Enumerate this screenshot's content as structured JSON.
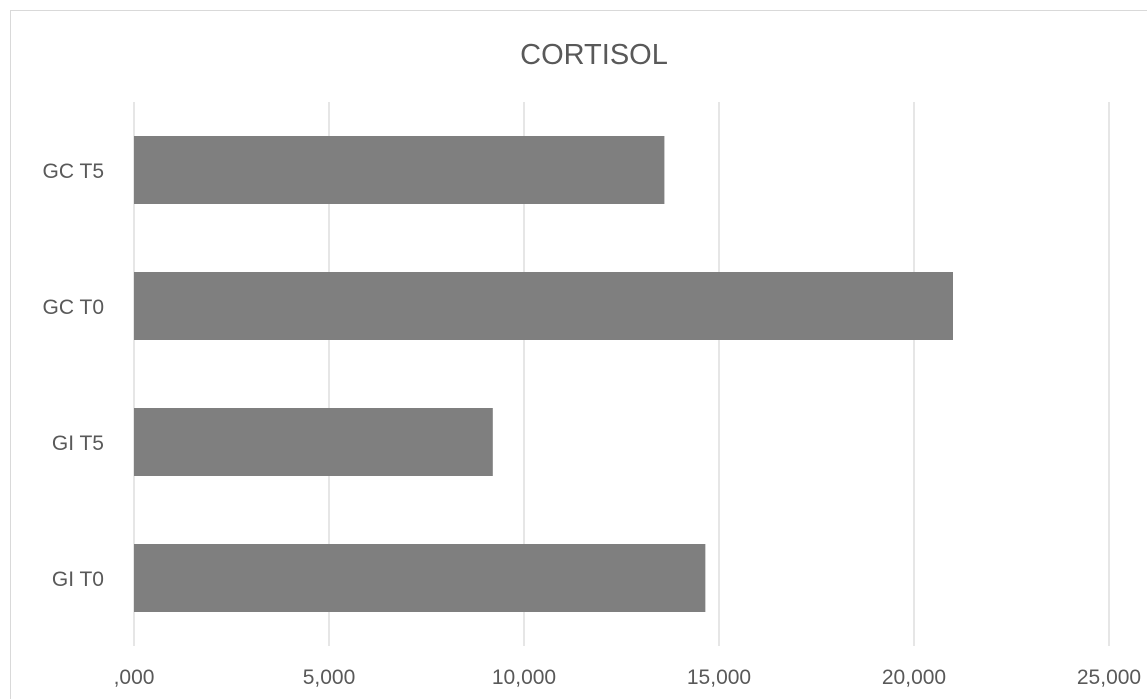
{
  "chart_data": {
    "type": "bar",
    "orientation": "horizontal",
    "title": "CORTISOL",
    "xlabel": "",
    "ylabel": "",
    "categories": [
      "GI T0",
      "GI T5",
      "GC T0",
      "GC T5"
    ],
    "values": [
      14.65,
      9.2,
      21.0,
      13.6
    ],
    "xlim": [
      0,
      25
    ],
    "x_ticks": [
      0,
      5,
      10,
      15,
      20,
      25
    ],
    "x_tick_labels": [
      ",000",
      "5,000",
      "10,000",
      "15,000",
      "20,000",
      "25,000"
    ],
    "grid": "vertical",
    "legend": "none",
    "bar_color": "#7f7f7f",
    "grid_color": "#d9d9d9",
    "text_color": "#595959"
  }
}
